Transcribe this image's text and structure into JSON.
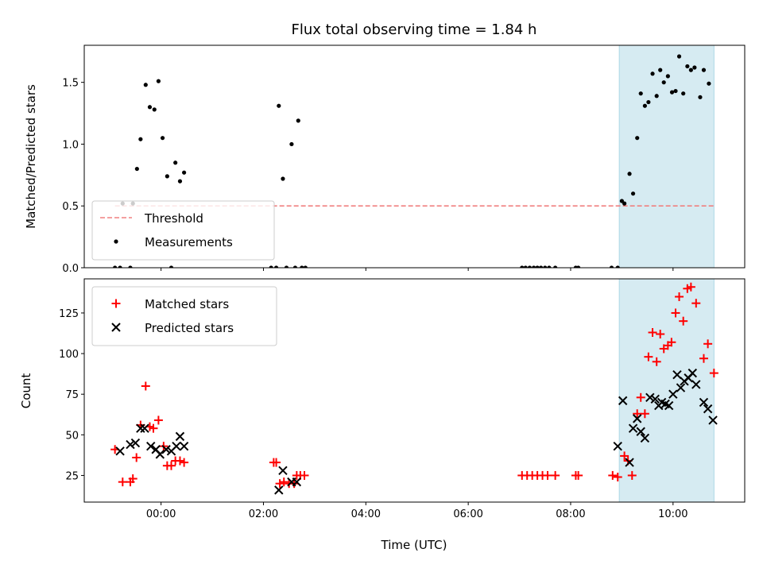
{
  "chart_data": {
    "title": "Flux total observing time = 1.84 h",
    "xlabel": "Time (UTC)",
    "x_unit": "hours (UTC)",
    "xlim": [
      -1.5,
      11.4
    ],
    "xticks": [
      0,
      2,
      4,
      6,
      8,
      10
    ],
    "xtick_labels": [
      "00:00",
      "02:00",
      "04:00",
      "06:00",
      "08:00",
      "10:00"
    ],
    "highlight_span": {
      "x": [
        8.95,
        10.8
      ],
      "color": "#add8e6"
    },
    "colors": {
      "threshold": "#f08080",
      "measurements": "#000000",
      "matched": "#ff0000",
      "predicted": "#000000",
      "span": "#add8e6"
    },
    "panels": [
      {
        "id": "ratio",
        "type": "scatter",
        "ylabel": "Matched/Predicted stars",
        "ylim": [
          0,
          1.8
        ],
        "yticks": [
          0,
          0.5,
          1.0,
          1.5
        ],
        "ytick_labels": [
          "0.0",
          "0.5",
          "1.0",
          "1.5"
        ],
        "legend_position": "lower-left",
        "threshold": {
          "name": "Threshold",
          "y": 0.5,
          "x": [
            -0.9,
            10.8
          ],
          "style": "dashed"
        },
        "series": [
          {
            "name": "Measurements",
            "marker": "dot",
            "points": [
              [
                -0.9,
                0.0
              ],
              [
                -0.8,
                0.0
              ],
              [
                -0.75,
                0.52
              ],
              [
                -0.6,
                0.0
              ],
              [
                -0.55,
                0.52
              ],
              [
                -0.47,
                0.8
              ],
              [
                -0.4,
                1.04
              ],
              [
                -0.3,
                1.48
              ],
              [
                -0.22,
                1.3
              ],
              [
                -0.13,
                1.28
              ],
              [
                -0.05,
                1.51
              ],
              [
                0.03,
                1.05
              ],
              [
                0.12,
                0.74
              ],
              [
                0.2,
                0.0
              ],
              [
                0.28,
                0.85
              ],
              [
                0.37,
                0.7
              ],
              [
                0.45,
                0.77
              ],
              [
                2.15,
                0.0
              ],
              [
                2.25,
                0.0
              ],
              [
                2.3,
                1.31
              ],
              [
                2.38,
                0.72
              ],
              [
                2.45,
                0.0
              ],
              [
                2.55,
                1.0
              ],
              [
                2.62,
                0.0
              ],
              [
                2.68,
                1.19
              ],
              [
                2.75,
                0.0
              ],
              [
                2.82,
                0.0
              ],
              [
                7.05,
                0.0
              ],
              [
                7.12,
                0.0
              ],
              [
                7.2,
                0.0
              ],
              [
                7.28,
                0.0
              ],
              [
                7.35,
                0.0
              ],
              [
                7.42,
                0.0
              ],
              [
                7.5,
                0.0
              ],
              [
                7.58,
                0.0
              ],
              [
                7.7,
                0.0
              ],
              [
                8.1,
                0.0
              ],
              [
                8.15,
                0.0
              ],
              [
                8.8,
                0.0
              ],
              [
                8.92,
                0.0
              ],
              [
                9.0,
                0.54
              ],
              [
                9.05,
                0.52
              ],
              [
                9.15,
                0.76
              ],
              [
                9.22,
                0.6
              ],
              [
                9.3,
                1.05
              ],
              [
                9.37,
                1.41
              ],
              [
                9.45,
                1.31
              ],
              [
                9.52,
                1.34
              ],
              [
                9.6,
                1.57
              ],
              [
                9.68,
                1.39
              ],
              [
                9.75,
                1.6
              ],
              [
                9.82,
                1.5
              ],
              [
                9.9,
                1.55
              ],
              [
                9.98,
                1.42
              ],
              [
                10.05,
                1.43
              ],
              [
                10.12,
                1.71
              ],
              [
                10.2,
                1.41
              ],
              [
                10.28,
                1.63
              ],
              [
                10.35,
                1.6
              ],
              [
                10.42,
                1.62
              ],
              [
                10.53,
                1.38
              ],
              [
                10.6,
                1.6
              ],
              [
                10.7,
                1.49
              ]
            ]
          }
        ]
      },
      {
        "id": "counts",
        "type": "scatter",
        "ylabel": "Count",
        "ylim": [
          8.6,
          146
        ],
        "yticks": [
          25,
          50,
          75,
          100,
          125
        ],
        "ytick_labels": [
          "25",
          "50",
          "75",
          "100",
          "125"
        ],
        "legend_position": "upper-left",
        "series": [
          {
            "name": "Matched stars",
            "marker": "plus",
            "points": [
              [
                -0.9,
                41
              ],
              [
                -0.75,
                21
              ],
              [
                -0.6,
                21
              ],
              [
                -0.55,
                23
              ],
              [
                -0.48,
                36
              ],
              [
                -0.4,
                56
              ],
              [
                -0.3,
                80
              ],
              [
                -0.22,
                55
              ],
              [
                -0.15,
                54
              ],
              [
                -0.05,
                59
              ],
              [
                0.05,
                43
              ],
              [
                0.12,
                31
              ],
              [
                0.2,
                31
              ],
              [
                0.28,
                34
              ],
              [
                0.37,
                34
              ],
              [
                0.45,
                33
              ],
              [
                2.2,
                33
              ],
              [
                2.25,
                33
              ],
              [
                2.32,
                20
              ],
              [
                2.4,
                21
              ],
              [
                2.5,
                20
              ],
              [
                2.6,
                20
              ],
              [
                2.65,
                25
              ],
              [
                2.72,
                25
              ],
              [
                2.8,
                25
              ],
              [
                7.05,
                25
              ],
              [
                7.15,
                25
              ],
              [
                7.25,
                25
              ],
              [
                7.35,
                25
              ],
              [
                7.45,
                25
              ],
              [
                7.55,
                25
              ],
              [
                7.7,
                25
              ],
              [
                8.1,
                25
              ],
              [
                8.15,
                25
              ],
              [
                8.82,
                25
              ],
              [
                8.92,
                24
              ],
              [
                9.05,
                37
              ],
              [
                9.12,
                34
              ],
              [
                9.2,
                25
              ],
              [
                9.3,
                63
              ],
              [
                9.37,
                73
              ],
              [
                9.45,
                63
              ],
              [
                9.52,
                98
              ],
              [
                9.6,
                113
              ],
              [
                9.68,
                95
              ],
              [
                9.75,
                112
              ],
              [
                9.82,
                103
              ],
              [
                9.9,
                105
              ],
              [
                9.97,
                107
              ],
              [
                10.05,
                125
              ],
              [
                10.12,
                135
              ],
              [
                10.2,
                120
              ],
              [
                10.28,
                140
              ],
              [
                10.35,
                141
              ],
              [
                10.45,
                131
              ],
              [
                10.6,
                97
              ],
              [
                10.68,
                106
              ],
              [
                10.8,
                88
              ]
            ]
          },
          {
            "name": "Predicted stars",
            "marker": "x",
            "points": [
              [
                -0.8,
                40
              ],
              [
                -0.6,
                44
              ],
              [
                -0.5,
                45
              ],
              [
                -0.4,
                54
              ],
              [
                -0.32,
                54
              ],
              [
                -0.2,
                43
              ],
              [
                -0.1,
                41
              ],
              [
                -0.02,
                38
              ],
              [
                0.1,
                41
              ],
              [
                0.2,
                40
              ],
              [
                0.3,
                43
              ],
              [
                0.37,
                49
              ],
              [
                0.45,
                43
              ],
              [
                2.3,
                16
              ],
              [
                2.38,
                28
              ],
              [
                2.55,
                21
              ],
              [
                2.65,
                21
              ],
              [
                8.92,
                43
              ],
              [
                9.02,
                71
              ],
              [
                9.15,
                33
              ],
              [
                9.22,
                54
              ],
              [
                9.3,
                60
              ],
              [
                9.37,
                52
              ],
              [
                9.45,
                48
              ],
              [
                9.55,
                73
              ],
              [
                9.65,
                72
              ],
              [
                9.72,
                68
              ],
              [
                9.78,
                70
              ],
              [
                9.85,
                69
              ],
              [
                9.92,
                68
              ],
              [
                10.0,
                75
              ],
              [
                10.08,
                87
              ],
              [
                10.15,
                79
              ],
              [
                10.22,
                83
              ],
              [
                10.3,
                85
              ],
              [
                10.38,
                88
              ],
              [
                10.45,
                81
              ],
              [
                10.6,
                70
              ],
              [
                10.68,
                66
              ],
              [
                10.78,
                59
              ]
            ]
          }
        ]
      }
    ]
  }
}
